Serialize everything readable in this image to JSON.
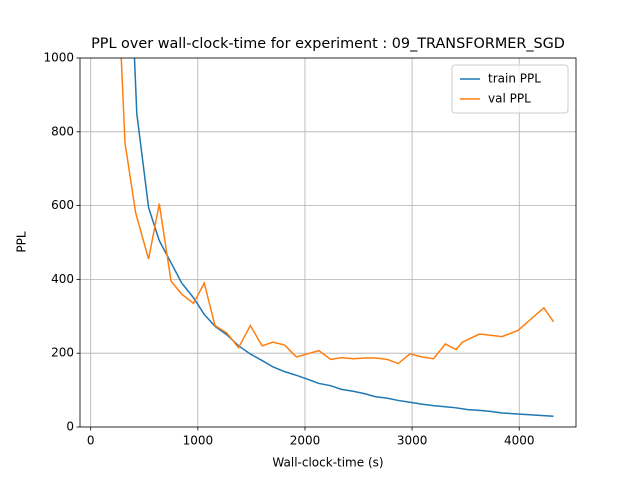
{
  "chart_data": {
    "type": "line",
    "title": "PPL over wall-clock-time for experiment : 09_TRANSFORMER_SGD",
    "xlabel": "Wall-clock-time (s)",
    "ylabel": "PPL",
    "xlim": [
      -100,
      4530
    ],
    "ylim": [
      0,
      1000
    ],
    "xticks": [
      0,
      1000,
      2000,
      3000,
      4000
    ],
    "yticks": [
      0,
      200,
      400,
      600,
      800,
      1000
    ],
    "grid": true,
    "legend": "upper right",
    "series": [
      {
        "name": "train PPL",
        "color": "#1f77b4",
        "x": [
          380,
          430,
          540,
          640,
          750,
          850,
          960,
          1060,
          1160,
          1270,
          1380,
          1490,
          1600,
          1700,
          1810,
          1920,
          2020,
          2130,
          2240,
          2340,
          2450,
          2560,
          2660,
          2770,
          2870,
          2980,
          3090,
          3200,
          3310,
          3410,
          3520,
          3630,
          3740,
          3840,
          3950,
          4060,
          4170,
          4320
        ],
        "values": [
          1200,
          850,
          595,
          505,
          445,
          390,
          350,
          305,
          273,
          250,
          220,
          198,
          180,
          163,
          150,
          140,
          130,
          118,
          112,
          102,
          97,
          90,
          82,
          78,
          72,
          67,
          62,
          58,
          55,
          52,
          47,
          45,
          42,
          38,
          36,
          34,
          32,
          29
        ]
      },
      {
        "name": "val PPL",
        "color": "#ff7f0e",
        "x": [
          270,
          320,
          420,
          540,
          640,
          750,
          850,
          960,
          1060,
          1160,
          1270,
          1380,
          1490,
          1600,
          1700,
          1810,
          1920,
          2020,
          2130,
          2240,
          2340,
          2450,
          2560,
          2660,
          2770,
          2870,
          2980,
          3090,
          3200,
          3310,
          3410,
          3470,
          3630,
          3840,
          3990,
          4100,
          4230,
          4320
        ],
        "values": [
          1100,
          770,
          580,
          455,
          605,
          395,
          360,
          335,
          390,
          275,
          255,
          215,
          275,
          220,
          230,
          222,
          190,
          198,
          207,
          183,
          188,
          185,
          187,
          187,
          183,
          172,
          198,
          190,
          185,
          225,
          210,
          230,
          252,
          245,
          262,
          290,
          323,
          285
        ]
      }
    ]
  }
}
